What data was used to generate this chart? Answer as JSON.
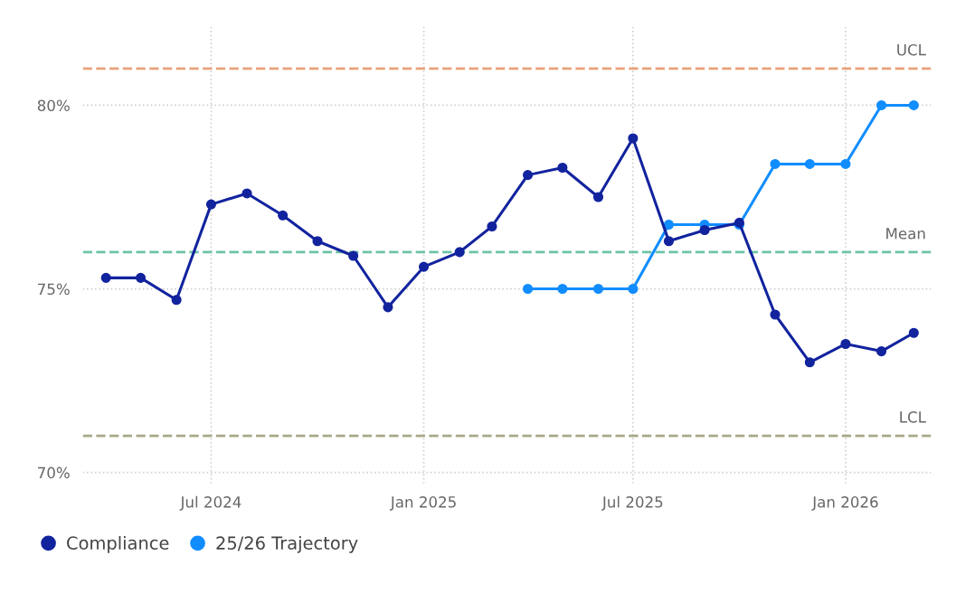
{
  "chart_data": {
    "type": "line",
    "x": [
      "2024-04",
      "2024-05",
      "2024-06",
      "2024-07",
      "2024-08",
      "2024-09",
      "2024-10",
      "2024-11",
      "2024-12",
      "2025-01",
      "2025-02",
      "2025-03",
      "2025-04",
      "2025-05",
      "2025-06",
      "2025-07",
      "2025-08",
      "2025-09",
      "2025-10",
      "2025-11",
      "2025-12",
      "2026-01",
      "2026-02",
      "2026-03"
    ],
    "series": [
      {
        "name": "Compliance",
        "color": "#12239e",
        "values": [
          75.3,
          75.3,
          74.7,
          77.3,
          77.6,
          77.0,
          76.3,
          75.9,
          74.5,
          75.6,
          76.0,
          76.7,
          78.1,
          78.3,
          77.5,
          79.1,
          76.3,
          76.6,
          76.8,
          74.3,
          73.0,
          73.5,
          73.3,
          73.8
        ]
      },
      {
        "name": "25/26 Trajectory",
        "color": "#118dff",
        "values": [
          null,
          null,
          null,
          null,
          null,
          null,
          null,
          null,
          null,
          null,
          null,
          null,
          75.0,
          75.0,
          75.0,
          75.0,
          76.75,
          76.75,
          76.75,
          78.4,
          78.4,
          78.4,
          80.0,
          80.0
        ]
      }
    ],
    "xlim": [
      "2024-03-12",
      "2026-03-16"
    ],
    "xticks": [
      {
        "value": "2024-07",
        "label": "Jul 2024"
      },
      {
        "value": "2025-01",
        "label": "Jan 2025"
      },
      {
        "value": "2025-07",
        "label": "Jul 2025"
      },
      {
        "value": "2026-01",
        "label": "Jan 2026"
      }
    ],
    "ylim": [
      69.7,
      82.2
    ],
    "yticks": [
      {
        "value": 70,
        "label": "70%"
      },
      {
        "value": 75,
        "label": "75%"
      },
      {
        "value": 80,
        "label": "80%"
      }
    ],
    "ref_lines": [
      {
        "axis": "y",
        "value": 81,
        "label": "UCL",
        "color": "#e8a27a",
        "line_style": "dashed"
      },
      {
        "axis": "y",
        "value": 76,
        "label": "Mean",
        "color": "#6cc3a6",
        "line_style": "dashed"
      },
      {
        "axis": "y",
        "value": 71,
        "label": "LCL",
        "color": "#a8a888",
        "line_style": "dashed"
      }
    ],
    "grid": true,
    "legend": "bottom left",
    "marker": "circle",
    "line_style": "solid"
  }
}
